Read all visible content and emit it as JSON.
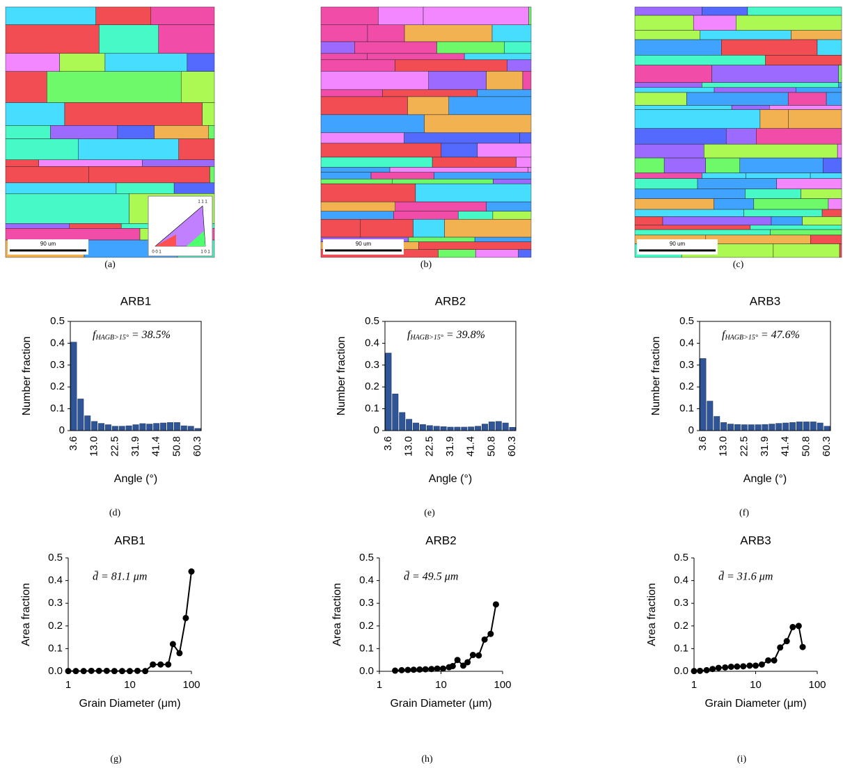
{
  "maps": [
    {
      "scale_bar": "90 um",
      "caption": "(a)",
      "ipf": {
        "top": "1 1 1",
        "left": "0 0 1",
        "right": "1 0 1"
      }
    },
    {
      "scale_bar": "90 um",
      "caption": "(b)"
    },
    {
      "scale_bar": "90 um",
      "caption": "(c)"
    }
  ],
  "chart_data": [
    {
      "type": "bar",
      "title": "ARB1",
      "annotation": {
        "symbol": "f",
        "subscript": "HAGB>15°",
        "text": " = 38.5%"
      },
      "categories": [
        "3.6",
        null,
        null,
        "13.0",
        null,
        null,
        "22.5",
        null,
        null,
        "31.9",
        null,
        null,
        "41.4",
        null,
        null,
        "50.8",
        null,
        null,
        "60.3"
      ],
      "values": [
        0.405,
        0.145,
        0.068,
        0.042,
        0.033,
        0.027,
        0.02,
        0.02,
        0.022,
        0.027,
        0.032,
        0.03,
        0.033,
        0.035,
        0.037,
        0.037,
        0.022,
        0.02,
        0.01
      ],
      "color": "#2f5597",
      "ylim": [
        0,
        0.5
      ],
      "yticks": [
        0,
        0.1,
        0.2,
        0.3,
        0.4,
        0.5
      ],
      "x_label": "Angle (°)",
      "y_label": "Number fraction",
      "caption": "(d)"
    },
    {
      "type": "bar",
      "title": "ARB2",
      "annotation": {
        "symbol": "f",
        "subscript": "HAGB>15°",
        "text": " = 39.8%"
      },
      "categories": [
        "3.6",
        null,
        null,
        "13.0",
        null,
        null,
        "22.5",
        null,
        null,
        "31.9",
        null,
        null,
        "41.4",
        null,
        null,
        "50.8",
        null,
        null,
        "60.3"
      ],
      "values": [
        0.355,
        0.168,
        0.083,
        0.052,
        0.035,
        0.028,
        0.023,
        0.02,
        0.018,
        0.016,
        0.016,
        0.016,
        0.017,
        0.02,
        0.03,
        0.04,
        0.042,
        0.035,
        0.015
      ],
      "color": "#2f5597",
      "ylim": [
        0,
        0.5
      ],
      "yticks": [
        0,
        0.1,
        0.2,
        0.3,
        0.4,
        0.5
      ],
      "x_label": "Angle (°)",
      "y_label": "Number fraction",
      "caption": "(e)"
    },
    {
      "type": "bar",
      "title": "ARB3",
      "annotation": {
        "symbol": "f",
        "subscript": "HAGB>15°",
        "text": " = 47.6%"
      },
      "categories": [
        "3.6",
        null,
        null,
        "13.0",
        null,
        null,
        "22.5",
        null,
        null,
        "31.9",
        null,
        null,
        "41.4",
        null,
        null,
        "50.8",
        null,
        null,
        "60.3"
      ],
      "values": [
        0.33,
        0.135,
        0.065,
        0.037,
        0.03,
        0.028,
        0.027,
        0.027,
        0.027,
        0.028,
        0.03,
        0.033,
        0.035,
        0.037,
        0.04,
        0.04,
        0.04,
        0.035,
        0.02
      ],
      "color": "#2f5597",
      "ylim": [
        0,
        0.5
      ],
      "yticks": [
        0,
        0.1,
        0.2,
        0.3,
        0.4,
        0.5
      ],
      "x_label": "Angle (°)",
      "y_label": "Number fraction",
      "caption": "(f)"
    },
    {
      "type": "line",
      "title": "ARB1",
      "annotation": "d̄ =  81.1 μm",
      "x": [
        1,
        1.33,
        1.78,
        2.37,
        3.16,
        4.22,
        5.62,
        7.5,
        10,
        13.3,
        17.8,
        23.7,
        31.6,
        42,
        50,
        64,
        81,
        100
      ],
      "values": [
        0.001,
        0.001,
        0.001,
        0.002,
        0.002,
        0.002,
        0.001,
        0.001,
        0.001,
        0.002,
        0.001,
        0.03,
        0.03,
        0.03,
        0.12,
        0.08,
        0.235,
        0.44
      ],
      "color": "#000000",
      "xscale": "log",
      "xlim": [
        1,
        100
      ],
      "xticks": [
        1,
        10,
        100
      ],
      "ylim": [
        0,
        0.5
      ],
      "yticks": [
        {
          "value": 0,
          "label": "0.0"
        },
        {
          "value": 0.1,
          "label": "0.1"
        },
        {
          "value": 0.2,
          "label": "0.2"
        },
        {
          "value": 0.3,
          "label": "0.3"
        },
        {
          "value": 0.4,
          "label": "0.4"
        },
        {
          "value": 0.5,
          "label": "0.5"
        }
      ],
      "x_label": "Grain Diameter (μm)",
      "y_label": "Area fraction",
      "caption": "(g)"
    },
    {
      "type": "line",
      "title": "ARB2",
      "annotation": "d̄ =  49.5 μm",
      "x": [
        1.8,
        2.3,
        2.9,
        3.6,
        4.5,
        5.6,
        7,
        8.7,
        10.8,
        13.5,
        15.5,
        18.5,
        23,
        27,
        33,
        41,
        51,
        64,
        78
      ],
      "values": [
        0.003,
        0.005,
        0.006,
        0.007,
        0.008,
        0.009,
        0.01,
        0.012,
        0.012,
        0.018,
        0.023,
        0.05,
        0.025,
        0.04,
        0.072,
        0.07,
        0.14,
        0.165,
        0.295
      ],
      "color": "#000000",
      "xscale": "log",
      "xlim": [
        1,
        100
      ],
      "xticks": [
        1,
        10,
        100
      ],
      "ylim": [
        0,
        0.5
      ],
      "yticks": [
        {
          "value": 0,
          "label": "0.0"
        },
        {
          "value": 0.1,
          "label": "0.1"
        },
        {
          "value": 0.2,
          "label": "0.2"
        },
        {
          "value": 0.3,
          "label": "0.3"
        },
        {
          "value": 0.4,
          "label": "0.4"
        },
        {
          "value": 0.5,
          "label": "0.5"
        }
      ],
      "x_label": "Grain Diameter (μm)",
      "y_label": "Area fraction",
      "caption": "(h)"
    },
    {
      "type": "line",
      "title": "ARB3",
      "annotation": "d̄ =  31.6 μm",
      "x": [
        1,
        1.25,
        1.6,
        2,
        2.5,
        3.2,
        4,
        5,
        6.3,
        8,
        10,
        12.6,
        16,
        20,
        25,
        32,
        40,
        50,
        58
      ],
      "values": [
        0.001,
        0.002,
        0.005,
        0.01,
        0.015,
        0.017,
        0.02,
        0.021,
        0.022,
        0.025,
        0.025,
        0.03,
        0.048,
        0.048,
        0.105,
        0.133,
        0.195,
        0.2,
        0.107
      ],
      "color": "#000000",
      "xscale": "log",
      "xlim": [
        1,
        100
      ],
      "xticks": [
        1,
        10,
        100
      ],
      "ylim": [
        0,
        0.5
      ],
      "yticks": [
        {
          "value": 0,
          "label": "0.0"
        },
        {
          "value": 0.1,
          "label": "0.1"
        },
        {
          "value": 0.2,
          "label": "0.2"
        },
        {
          "value": 0.3,
          "label": "0.3"
        },
        {
          "value": 0.4,
          "label": "0.4"
        },
        {
          "value": 0.5,
          "label": "0.5"
        }
      ],
      "x_label": "Grain Diameter (μm)",
      "y_label": "Area fraction",
      "caption": "(i)"
    }
  ]
}
